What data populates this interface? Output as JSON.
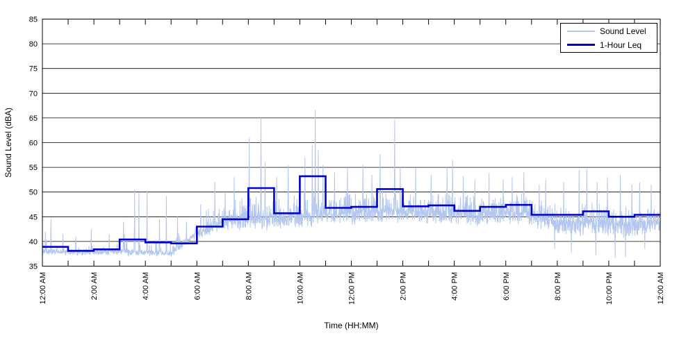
{
  "chart": {
    "legend": {
      "position": "top-right",
      "items": [
        {
          "label": "Sound Level",
          "color": "#b3c7ee",
          "thickness": 2
        },
        {
          "label": "1-Hour Leq",
          "color": "#0000cc",
          "thickness": 3
        }
      ]
    },
    "colors": {
      "background": "#ffffff",
      "grid": "#000000",
      "frame": "#000000",
      "text": "#000000"
    }
  },
  "chart_data": {
    "type": "line",
    "title": "",
    "xlabel": "Time (HH:MM)",
    "ylabel": "Sound Level (dBA)",
    "ylim": [
      35,
      85
    ],
    "y_ticks": [
      35,
      40,
      45,
      50,
      55,
      60,
      65,
      70,
      75,
      80,
      85
    ],
    "x_range_hours": [
      0,
      24
    ],
    "x_tick_interval_hours": 1,
    "x_label_interval_hours": 2,
    "x_tick_labels": [
      "12:00 AM",
      "2:00 AM",
      "4:00 AM",
      "6:00 AM",
      "8:00 AM",
      "10:00 AM",
      "12:00 PM",
      "2:00 PM",
      "4:00 PM",
      "6:00 PM",
      "8:00 PM",
      "10:00 PM",
      "12:00 AM"
    ],
    "grid": "horizontal-only",
    "series": [
      {
        "name": "Sound Level",
        "style": "noisy-trace",
        "color": "#b3c7ee",
        "width": 1,
        "samples_per_hour": 120,
        "seed": 1373,
        "hourly_baseline_dBA": [
          37.8,
          37.6,
          37.6,
          37.8,
          37.4,
          37.4,
          41.5,
          43.8,
          44.3,
          44.3,
          45.0,
          45.3,
          45.5,
          45.8,
          45.8,
          45.6,
          45.3,
          45.0,
          45.5,
          45.3,
          43.8,
          43.8,
          43.5,
          43.3,
          43.8
        ],
        "hourly_upward_spread_dBA": [
          3.0,
          2.5,
          2.8,
          3.5,
          3.4,
          3.2,
          3.6,
          4.2,
          4.6,
          4.2,
          4.6,
          4.0,
          4.0,
          4.3,
          4.0,
          4.0,
          3.8,
          3.8,
          3.8,
          3.6,
          3.6,
          3.6,
          3.6,
          3.3
        ],
        "hourly_downward_spread_dBA": [
          0.6,
          0.6,
          0.6,
          0.6,
          0.6,
          0.7,
          1.5,
          2.3,
          2.3,
          2.3,
          2.3,
          2.3,
          2.3,
          2.3,
          2.3,
          2.3,
          2.3,
          2.3,
          2.3,
          2.6,
          2.9,
          2.9,
          2.9,
          2.9
        ],
        "hourly_spike_probability": [
          0.05,
          0.05,
          0.05,
          0.06,
          0.06,
          0.08,
          0.3,
          0.5,
          0.55,
          0.5,
          0.55,
          0.5,
          0.5,
          0.5,
          0.5,
          0.5,
          0.48,
          0.48,
          0.48,
          0.42,
          0.4,
          0.4,
          0.4,
          0.4
        ],
        "notable_spikes": [
          [
            0.12,
            42.0
          ],
          [
            0.33,
            44.5
          ],
          [
            0.8,
            41.5
          ],
          [
            1.3,
            41.0
          ],
          [
            1.9,
            42.5
          ],
          [
            2.6,
            41.5
          ],
          [
            3.15,
            44.0
          ],
          [
            3.58,
            50.5
          ],
          [
            3.75,
            49.8
          ],
          [
            4.07,
            50.3
          ],
          [
            4.55,
            44.5
          ],
          [
            4.82,
            49.2
          ],
          [
            5.25,
            45.0
          ],
          [
            5.6,
            44.0
          ],
          [
            6.15,
            47.5
          ],
          [
            6.7,
            52.0
          ],
          [
            7.1,
            50.0
          ],
          [
            7.45,
            53.0
          ],
          [
            8.03,
            61.0
          ],
          [
            8.49,
            65.0
          ],
          [
            8.65,
            56.0
          ],
          [
            9.1,
            53.0
          ],
          [
            9.55,
            55.5
          ],
          [
            10.2,
            57.0
          ],
          [
            10.48,
            59.5
          ],
          [
            10.6,
            66.6
          ],
          [
            10.72,
            58.5
          ],
          [
            10.9,
            55.5
          ],
          [
            11.35,
            54.0
          ],
          [
            11.85,
            55.0
          ],
          [
            12.45,
            55.5
          ],
          [
            12.8,
            53.5
          ],
          [
            13.12,
            57.6
          ],
          [
            13.68,
            64.6
          ],
          [
            13.9,
            55.2
          ],
          [
            14.5,
            54.8
          ],
          [
            15.1,
            53.5
          ],
          [
            15.72,
            55.0
          ],
          [
            15.93,
            56.5
          ],
          [
            16.35,
            53.2
          ],
          [
            16.8,
            52.5
          ],
          [
            17.35,
            53.8
          ],
          [
            17.9,
            52.5
          ],
          [
            18.25,
            53.0
          ],
          [
            18.7,
            54.0
          ],
          [
            19.3,
            51.5
          ],
          [
            19.55,
            52.5
          ],
          [
            20.25,
            52.0
          ],
          [
            20.85,
            54.5
          ],
          [
            21.15,
            54.6
          ],
          [
            21.55,
            52.0
          ],
          [
            21.95,
            53.0
          ],
          [
            22.45,
            53.5
          ],
          [
            22.9,
            51.5
          ],
          [
            23.2,
            52.0
          ],
          [
            23.65,
            51.5
          ]
        ],
        "notable_dips": [
          [
            19.9,
            38.5
          ],
          [
            20.55,
            37.8
          ],
          [
            21.5,
            37.2
          ],
          [
            22.25,
            36.6
          ],
          [
            22.65,
            36.9
          ],
          [
            23.4,
            38.5
          ]
        ]
      },
      {
        "name": "1-Hour Leq",
        "style": "step",
        "color": "#0000cc",
        "width": 2.6,
        "hourly_leq_dBA": [
          38.9,
          38.1,
          38.4,
          40.4,
          39.8,
          39.6,
          43.0,
          44.5,
          50.8,
          45.7,
          53.2,
          46.8,
          47.0,
          50.6,
          47.1,
          47.3,
          46.2,
          47.0,
          47.4,
          45.4,
          45.4,
          46.1,
          45.0,
          45.4
        ]
      }
    ]
  }
}
